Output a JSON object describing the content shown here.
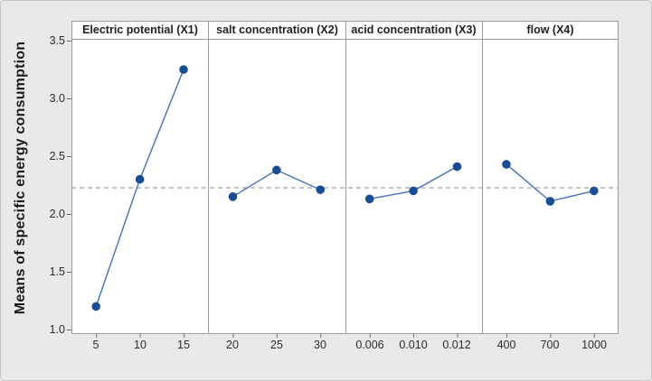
{
  "chart_data": {
    "type": "line",
    "description": "Main effects plot with four factor panels sharing one y-axis",
    "ylabel": "Means of specific energy consumption",
    "xlabel": "",
    "ylim": [
      1.0,
      3.5
    ],
    "ytick_labels": [
      "3.5",
      "3.0",
      "2.5",
      "2.0",
      "1.5",
      "1.0"
    ],
    "ytick_values": [
      3.5,
      3.0,
      2.5,
      2.0,
      1.5,
      1.0
    ],
    "reference_line": 2.23,
    "grid": false,
    "legend": false,
    "panels": [
      {
        "title": "Electric potential (X1)",
        "categories": [
          "5",
          "10",
          "15"
        ],
        "values": [
          1.2,
          2.3,
          3.25
        ]
      },
      {
        "title": "salt concentration (X2)",
        "categories": [
          "20",
          "25",
          "30"
        ],
        "values": [
          2.15,
          2.38,
          2.21
        ]
      },
      {
        "title": "acid concentration (X3)",
        "categories": [
          "0.006",
          "0.010",
          "0.012"
        ],
        "values": [
          2.13,
          2.2,
          2.41
        ]
      },
      {
        "title": "flow (X4)",
        "categories": [
          "400",
          "700",
          "1000"
        ],
        "values": [
          2.43,
          2.11,
          2.2
        ]
      }
    ],
    "colors": {
      "marker": "#1a4c94",
      "line": "#4472b4",
      "reference_line": "#8e8e8e",
      "frame": "#9c9c9c",
      "panel_bg": "#ffffff",
      "figure_bg": "#e9e9e9"
    }
  }
}
